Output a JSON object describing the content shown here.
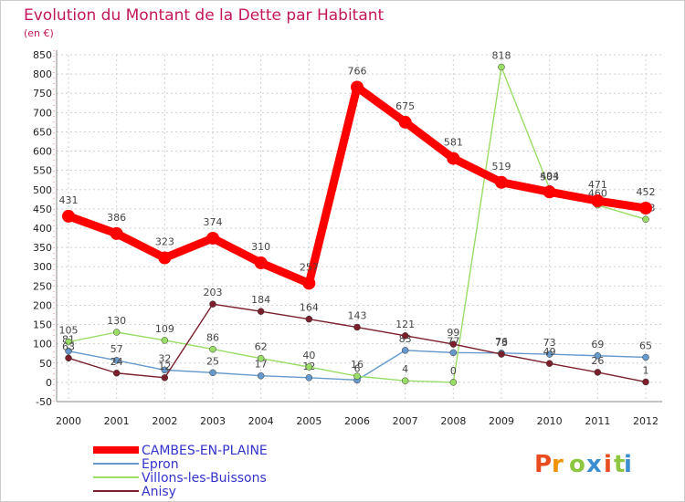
{
  "chart_data": {
    "type": "line",
    "title": "Evolution du Montant de la Dette par Habitant",
    "subtitle": "(en €)",
    "xlabel": "",
    "ylabel": "",
    "ylim": [
      -50,
      850
    ],
    "yticks": [
      -50,
      0,
      50,
      100,
      150,
      200,
      250,
      300,
      350,
      400,
      450,
      500,
      550,
      600,
      650,
      700,
      750,
      800,
      850
    ],
    "categories": [
      "2000",
      "2001",
      "2002",
      "2003",
      "2004",
      "2005",
      "2006",
      "2007",
      "2008",
      "2009",
      "2010",
      "2011",
      "2012"
    ],
    "grid": true,
    "legend_position": "bottom-left",
    "series": [
      {
        "name": "CAMBES-EN-PLAINE",
        "color": "#ff0000",
        "values": [
          431,
          386,
          323,
          374,
          310,
          257,
          766,
          675,
          581,
          519,
          494,
          471,
          452
        ]
      },
      {
        "name": "Epron",
        "color": "#6699cc",
        "values": [
          81,
          57,
          32,
          25,
          17,
          12,
          6,
          83,
          77,
          76,
          73,
          69,
          65
        ]
      },
      {
        "name": "Villons-les-Buissons",
        "color": "#99dd66",
        "values": [
          105,
          130,
          109,
          86,
          62,
          40,
          16,
          4,
          0,
          818,
          503,
          460,
          423
        ]
      },
      {
        "name": "Anisy",
        "color": "#7a1f2b",
        "values": [
          63,
          24,
          12,
          203,
          184,
          164,
          143,
          121,
          99,
          73,
          49,
          26,
          1
        ]
      }
    ]
  },
  "logo": {
    "text": "Proxiti"
  }
}
